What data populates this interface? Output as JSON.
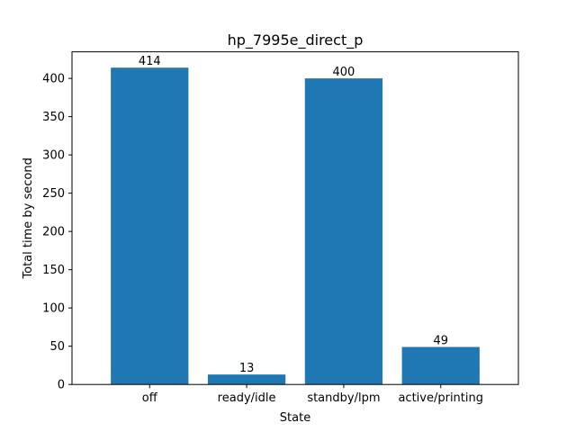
{
  "chart_data": {
    "type": "bar",
    "title": "hp_7995e_direct_p",
    "xlabel": "State",
    "ylabel": "Total time by second",
    "categories": [
      "off",
      "ready/idle",
      "standby/lpm",
      "active/printing"
    ],
    "values": [
      414,
      13,
      400,
      49
    ],
    "data_labels": [
      "414",
      "13",
      "400",
      "49"
    ],
    "yticks": [
      0,
      50,
      100,
      150,
      200,
      250,
      300,
      350,
      400
    ],
    "ylim": [
      0,
      434.7
    ],
    "bar_color": "#1f77b4",
    "grid": false,
    "legend": "none"
  }
}
